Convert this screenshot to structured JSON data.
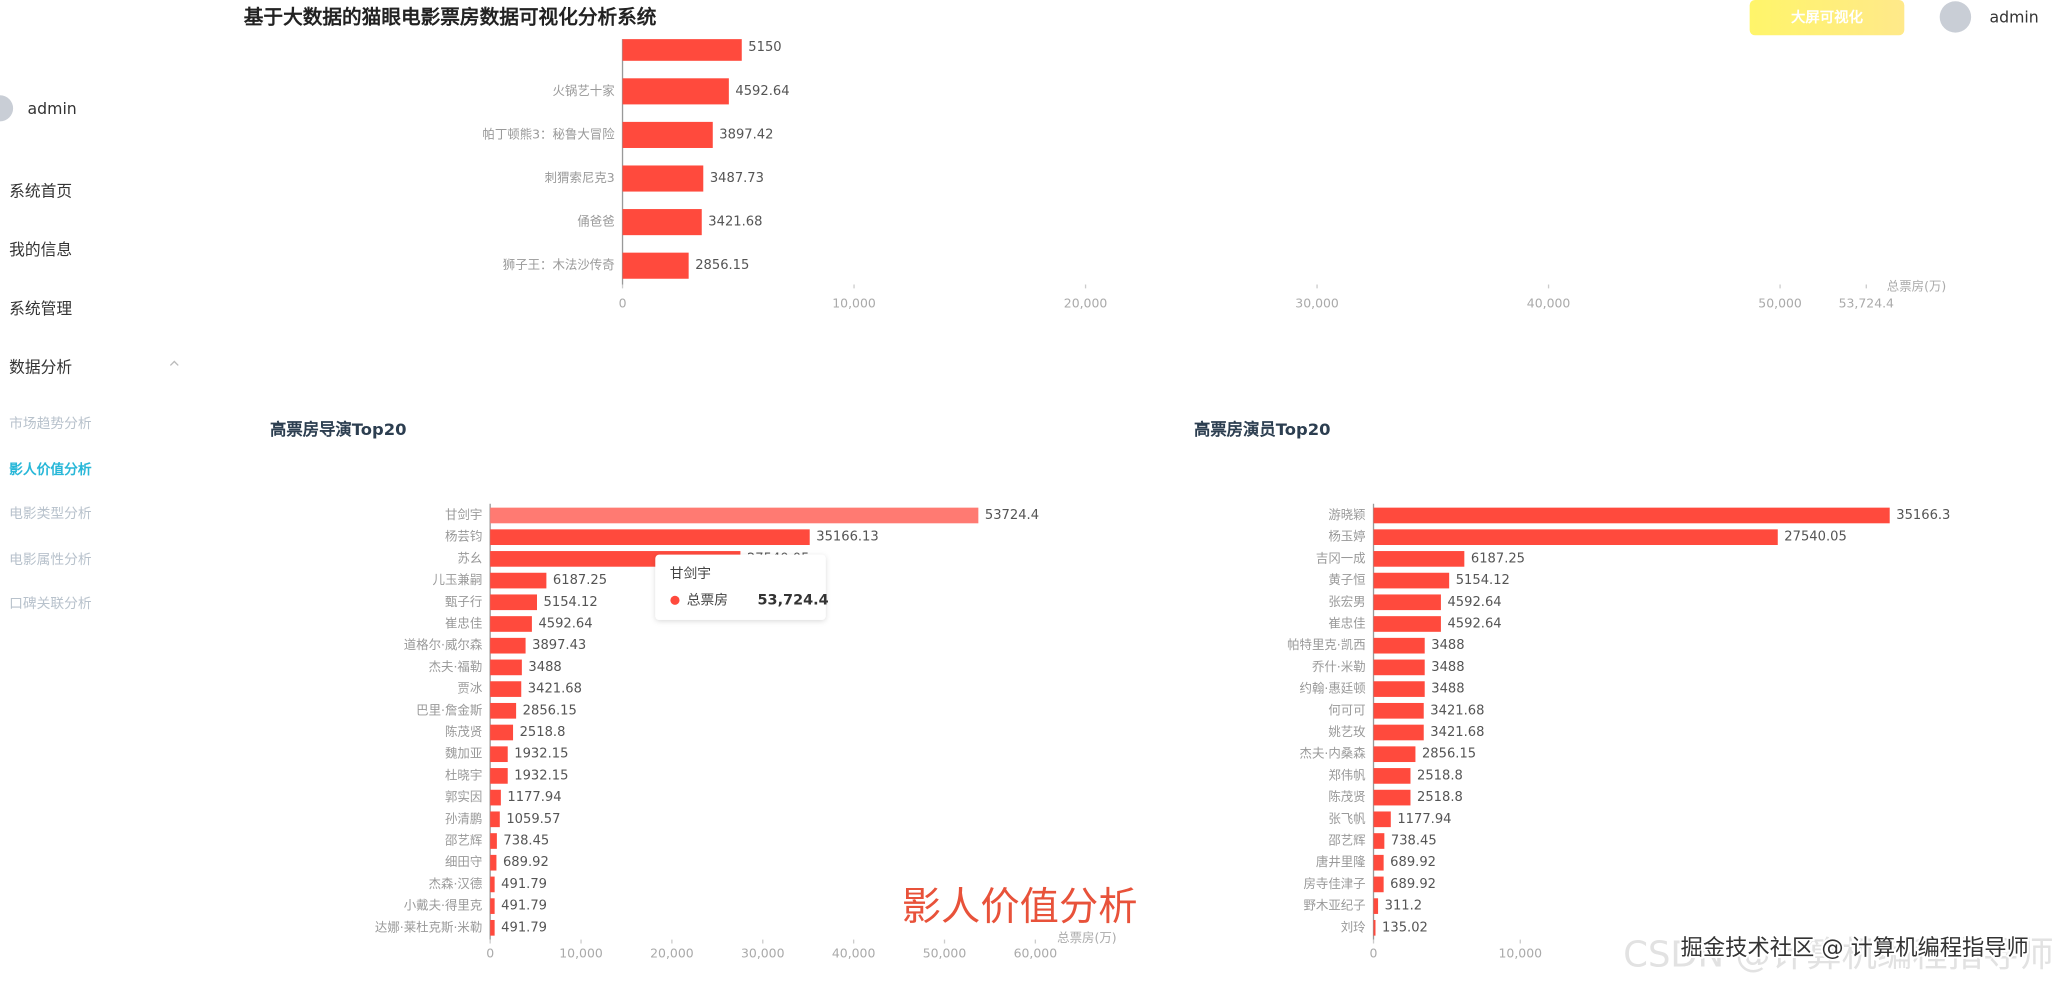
{
  "header": {
    "title": "基于大数据的猫眼电影票房数据可视化分析系统",
    "button": "大屏可视化",
    "user": "admin"
  },
  "sidebar": {
    "user": "admin",
    "menu": [
      "系统首页",
      "我的信息",
      "系统管理",
      "数据分析"
    ],
    "submenu": [
      "市场趋势分析",
      "影人价值分析",
      "电影类型分析",
      "电影属性分析",
      "口碑关联分析"
    ],
    "active": "影人价值分析"
  },
  "chart_data": [
    {
      "type": "bar",
      "orientation": "horizontal",
      "categories": [
        null,
        "火锅艺十家",
        "帕丁顿熊3：秘鲁大冒险",
        "刺猬索尼克3",
        "俑爸爸",
        "狮子王：木法沙传奇"
      ],
      "values": [
        5150,
        4592.64,
        3897.42,
        3487.73,
        3421.68,
        2856.15
      ],
      "color": "#ff4a3d",
      "xlim": [
        0,
        53724.4
      ],
      "xticks": [
        0,
        {
          "value": 10000,
          "label": "10,000"
        },
        {
          "value": 20000,
          "label": "20,000"
        },
        {
          "value": 30000,
          "label": "30,000"
        },
        {
          "value": 40000,
          "label": "40,000"
        },
        {
          "value": 50000,
          "label": "50,000"
        },
        {
          "value": 53724.4,
          "label": "53,724.4"
        }
      ],
      "x_label": "总票房(万)"
    },
    {
      "type": "bar",
      "orientation": "horizontal",
      "title": "高票房导演Top20",
      "categories": [
        "甘剑宇",
        "杨芸钧",
        "苏幺",
        "儿玉兼嗣",
        "甄子行",
        "崔忠佳",
        "道格尔·威尔森",
        "杰夫·福勒",
        "贾冰",
        "巴里·詹金斯",
        "陈茂贤",
        "魏加亚",
        "杜晓宇",
        "郭实因",
        "孙清鹏",
        "邵艺辉",
        "细田守",
        "杰森·汉德",
        "小戴夫·得里克",
        "达娜·莱杜克斯·米勒"
      ],
      "values": [
        53724.4,
        35166.13,
        27540.05,
        6187.25,
        5154.12,
        4592.64,
        3897.43,
        3488,
        3421.68,
        2856.15,
        2518.8,
        1932.15,
        1932.15,
        1177.94,
        1059.57,
        738.45,
        689.92,
        491.79,
        491.79,
        491.79
      ],
      "color": "#ff4a3d",
      "highlight_color": "#ff7a72",
      "xlim": [
        0,
        60000
      ],
      "xticks": [
        0,
        {
          "value": 10000,
          "label": "10,000"
        },
        {
          "value": 20000,
          "label": "20,000"
        },
        {
          "value": 30000,
          "label": "30,000"
        },
        {
          "value": 40000,
          "label": "40,000"
        },
        {
          "value": 50000,
          "label": "50,000"
        },
        {
          "value": 60000,
          "label": "60,000"
        }
      ],
      "x_label": "总票房(万)",
      "tooltip": {
        "category": "甘剑宇",
        "series": "总票房",
        "value": {
          "value": 53724.4,
          "label": "53,724.4"
        }
      }
    },
    {
      "type": "bar",
      "orientation": "horizontal",
      "title": "高票房演员Top20",
      "categories": [
        "游晓颖",
        "杨玉婷",
        "吉冈一成",
        "黄子恒",
        "张宏男",
        "崔忠佳",
        "帕特里克·凯西",
        "乔什·米勒",
        "约翰·惠廷顿",
        "何可可",
        "姚艺玫",
        "杰夫·内桑森",
        "郑伟帆",
        "陈茂贤",
        "张飞帆",
        "邵艺辉",
        "唐井里隆",
        "房寺佳津子",
        "野木亚纪子",
        "刘玲"
      ],
      "values": [
        35166.3,
        27540.05,
        6187.25,
        5154.12,
        4592.64,
        4592.64,
        3488,
        3488,
        3488,
        3421.68,
        3421.68,
        2856.15,
        2518.8,
        2518.8,
        1177.94,
        738.45,
        689.92,
        689.92,
        311.2,
        135.02
      ],
      "color": "#ff4a3d",
      "xlim": [
        0,
        40000
      ],
      "xticks": [
        0,
        {
          "value": 10000,
          "label": "10,000"
        }
      ]
    }
  ],
  "overlay": "影人价值分析",
  "watermark": {
    "main": "掘金技术社区 @ 计算机编程指导师",
    "faint": "CSDN @计算机编程指导师"
  }
}
